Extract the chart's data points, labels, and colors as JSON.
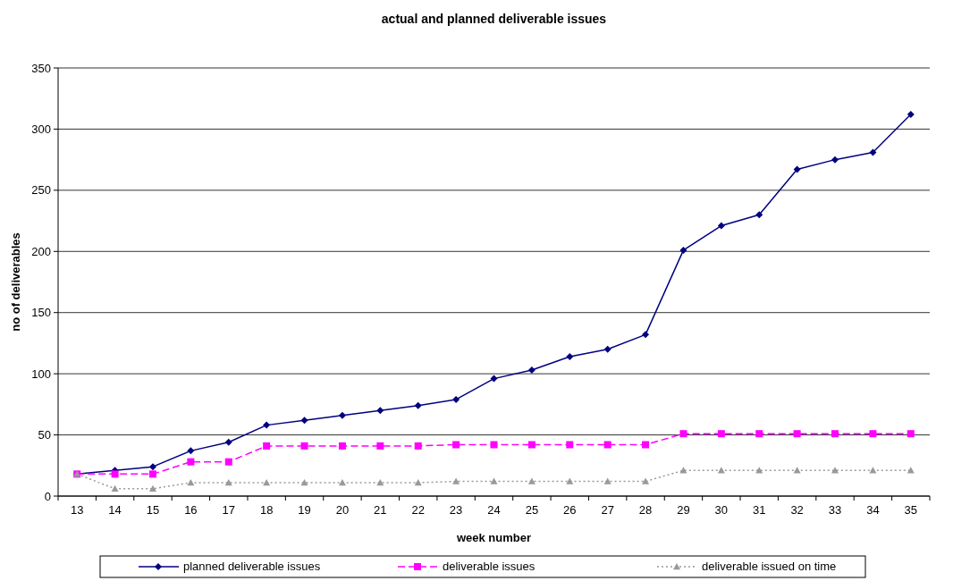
{
  "chart_data": {
    "type": "line",
    "title": "actual and planned deliverable issues",
    "xlabel": "week number",
    "ylabel": "no of deliverables",
    "categories": [
      "13",
      "14",
      "15",
      "16",
      "17",
      "18",
      "19",
      "20",
      "21",
      "22",
      "23",
      "24",
      "25",
      "26",
      "27",
      "28",
      "29",
      "30",
      "31",
      "32",
      "33",
      "34",
      "35"
    ],
    "series": [
      {
        "name": "planned deliverable issues",
        "color": "#000080",
        "marker": "diamond",
        "line_style": "solid",
        "values": [
          18,
          21,
          24,
          37,
          44,
          58,
          62,
          66,
          70,
          74,
          79,
          96,
          103,
          114,
          120,
          132,
          201,
          221,
          230,
          267,
          275,
          281,
          312
        ]
      },
      {
        "name": "deliverable issues",
        "color": "#ff00ff",
        "marker": "square",
        "line_style": "dashed",
        "values": [
          18,
          18,
          18,
          28,
          28,
          41,
          41,
          41,
          41,
          41,
          42,
          42,
          42,
          42,
          42,
          42,
          51,
          51,
          51,
          51,
          51,
          51,
          51
        ]
      },
      {
        "name": "deliverable issued on time",
        "color": "#999999",
        "marker": "triangle",
        "line_style": "dotted",
        "values": [
          18,
          6,
          6,
          11,
          11,
          11,
          11,
          11,
          11,
          11,
          12,
          12,
          12,
          12,
          12,
          12,
          21,
          21,
          21,
          21,
          21,
          21,
          21
        ]
      }
    ],
    "ylim": [
      0,
      350
    ],
    "yticks": [
      0,
      50,
      100,
      150,
      200,
      250,
      300,
      350
    ],
    "grid": "y",
    "legend": "bottom"
  }
}
